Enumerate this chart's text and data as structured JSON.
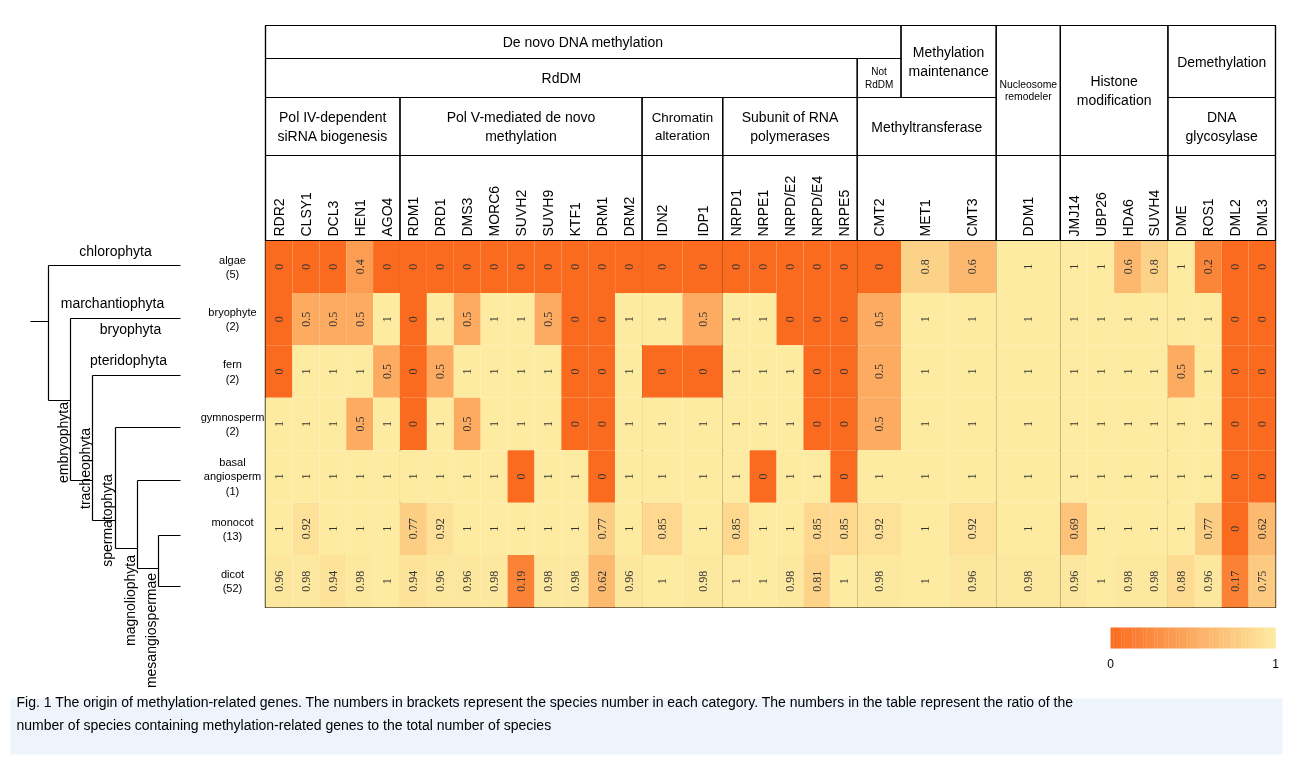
{
  "chart_data": {
    "type": "heatmap",
    "categories": [
      "RDR2",
      "CLSY1",
      "DCL3",
      "HEN1",
      "AGO4",
      "RDM1",
      "DRD1",
      "DMS3",
      "MORC6",
      "SUVH2",
      "SUVH9",
      "KTF1",
      "DRM1",
      "DRM2",
      "IDN2",
      "IDP1",
      "NRPD1",
      "NRPE1",
      "NRPD/E2",
      "NRPD/E4",
      "NRPE5",
      "CMT2",
      "MET1",
      "CMT3",
      "DDM1",
      "JMJ14",
      "UBP26",
      "HDA6",
      "SUVH4",
      "DME",
      "ROS1",
      "DML2",
      "DML3"
    ],
    "y_categories": [
      "algae\n(5)",
      "bryophyte\n(2)",
      "fern\n(2)",
      "gymnosperm\n(2)",
      "basal\nangiosperm\n(1)",
      "monocot\n(13)",
      "dicot\n(52)"
    ],
    "cells": [
      [
        0,
        0,
        0,
        0.4,
        0,
        0,
        0,
        0,
        0,
        0,
        0,
        0,
        0,
        0,
        0,
        0,
        0,
        0,
        0,
        0,
        0,
        0,
        0.8,
        0.6,
        1,
        1,
        1,
        0.6,
        0.8,
        1,
        0.2,
        0,
        0
      ],
      [
        0,
        0.5,
        0.5,
        0.5,
        1,
        0,
        1,
        0.5,
        1,
        1,
        0.5,
        0,
        0,
        1,
        1,
        0.5,
        1,
        1,
        0,
        0,
        0,
        0.5,
        1,
        1,
        1,
        1,
        1,
        1,
        1,
        1,
        1,
        0,
        0
      ],
      [
        0,
        1,
        1,
        1,
        0.5,
        0,
        0.5,
        1,
        1,
        1,
        1,
        0,
        0,
        1,
        0,
        0,
        1,
        1,
        1,
        0,
        0,
        0.5,
        1,
        1,
        1,
        1,
        1,
        1,
        1,
        0.5,
        1,
        0,
        0
      ],
      [
        1,
        1,
        1,
        0.5,
        1,
        0,
        1,
        0.5,
        1,
        1,
        1,
        0,
        0,
        1,
        1,
        1,
        1,
        1,
        1,
        0,
        0,
        0.5,
        1,
        1,
        1,
        1,
        1,
        1,
        1,
        1,
        1,
        0,
        0
      ],
      [
        1,
        1,
        1,
        1,
        1,
        1,
        1,
        1,
        1,
        0,
        1,
        1,
        0,
        1,
        1,
        1,
        1,
        0,
        1,
        1,
        0,
        1,
        1,
        1,
        1,
        1,
        1,
        1,
        1,
        1,
        1,
        0,
        0
      ],
      [
        1,
        0.92,
        1,
        1,
        1,
        0.77,
        0.92,
        1,
        1,
        1,
        1,
        1,
        0.77,
        1,
        0.85,
        1,
        0.85,
        1,
        1,
        0.85,
        0.85,
        0.92,
        1,
        0.92,
        1,
        0.69,
        1,
        1,
        1,
        1,
        0.77,
        0,
        0.62
      ],
      [
        0.96,
        0.98,
        0.94,
        0.98,
        1,
        0.94,
        0.96,
        0.96,
        0.98,
        0.19,
        0.98,
        0.98,
        0.62,
        0.96,
        1,
        0.98,
        1,
        1,
        0.98,
        0.81,
        1,
        0.98,
        1,
        0.96,
        0.98,
        0.96,
        1,
        0.98,
        0.98,
        0.88,
        0.96,
        0.17,
        0.75
      ]
    ],
    "data_labels": true,
    "clim": [
      0,
      1
    ],
    "cticks": [
      0,
      1
    ],
    "annotations": [
      "De novo DNA methylation",
      "Methylation maintenance",
      "Nucleosome remodeler",
      "Histone modification",
      "Demethylation",
      "RdDM",
      "Not RdDM",
      "Pol IV-dependent siRNA biogenesis",
      "Pol V-mediated de novo methylation",
      "Chromatin alteration",
      "Subunit of RNA polymerases",
      "Methyltransferase",
      "DNA glycosylase",
      "chlorophyta",
      "marchantiophyta",
      "bryophyta",
      "pteridophyta",
      "embryophyta",
      "tracheophyta",
      "spermatophyta",
      "magnoliophyta",
      "mesangiospermae",
      "Fig. 1 The origin of methylation-related genes. The numbers in brackets represent the species number in each category. The numbers in the table represent the ratio of the number of species containing methylation-related genes to the total number of species"
    ]
  }
}
